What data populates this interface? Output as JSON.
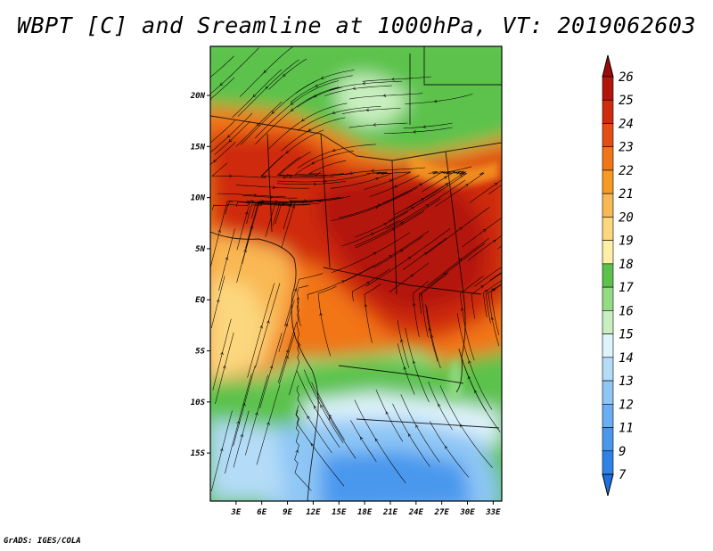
{
  "title": "WBPT [C] and Sreamline at 1000hPa, VT: 2019062603",
  "credit": "GrADS: IGES/COLA",
  "chart_data": {
    "type": "heatmap",
    "title": "WBPT [C] and Sreamline at 1000hPa, VT: 2019062603",
    "variable": "WBPT [C]",
    "overlay": "streamlines",
    "level": "1000hPa",
    "valid_time": "2019062603",
    "x_axis": {
      "ticks": [
        3,
        6,
        9,
        12,
        15,
        18,
        21,
        24,
        27,
        30,
        33
      ],
      "tick_labels": [
        "3E",
        "6E",
        "9E",
        "12E",
        "15E",
        "18E",
        "21E",
        "24E",
        "27E",
        "30E",
        "33E"
      ],
      "range": [
        0,
        34
      ]
    },
    "y_axis": {
      "ticks": [
        20,
        15,
        10,
        5,
        0,
        -5,
        -10,
        -15
      ],
      "tick_labels": [
        "20N",
        "15N",
        "10N",
        "5N",
        "EQ",
        "5S",
        "10S",
        "15S"
      ],
      "range": [
        -19.7,
        24.8
      ]
    },
    "colorbar": {
      "levels": [
        7,
        9,
        11,
        12,
        13,
        14,
        15,
        16,
        17,
        18,
        19,
        20,
        21,
        22,
        23,
        24,
        25,
        26
      ],
      "labels": [
        "7",
        "9",
        "11",
        "12",
        "13",
        "14",
        "15",
        "16",
        "17",
        "18",
        "19",
        "20",
        "21",
        "22",
        "23",
        "24",
        "25",
        "26"
      ],
      "colors": [
        "#1e6fe0",
        "#2f82e8",
        "#4a98ee",
        "#6aaff2",
        "#8ec6f5",
        "#b4dbf8",
        "#dff3fb",
        "#c9efc0",
        "#93dc84",
        "#5cc24c",
        "#ffefa6",
        "#fcd77e",
        "#f9b853",
        "#f69a24",
        "#f27518",
        "#e44d13",
        "#cf2c0f",
        "#b3150c",
        "#9c0a08"
      ]
    },
    "regions": [
      {
        "lon": [
          0,
          34
        ],
        "lat": [
          13.5,
          24.8
        ],
        "value": 17
      },
      {
        "lon": [
          0,
          34
        ],
        "lat": [
          3,
          15
        ],
        "value": 24
      },
      {
        "lon": [
          14,
          34
        ],
        "lat": [
          -4,
          5
        ],
        "value": 24
      },
      {
        "lon": [
          0,
          14
        ],
        "lat": [
          -8,
          3
        ],
        "value": 20
      },
      {
        "lon": [
          0,
          34
        ],
        "lat": [
          -12,
          -7
        ],
        "value": 17
      },
      {
        "lon": [
          0,
          34
        ],
        "lat": [
          -19.7,
          -12
        ],
        "value": 13
      }
    ]
  }
}
